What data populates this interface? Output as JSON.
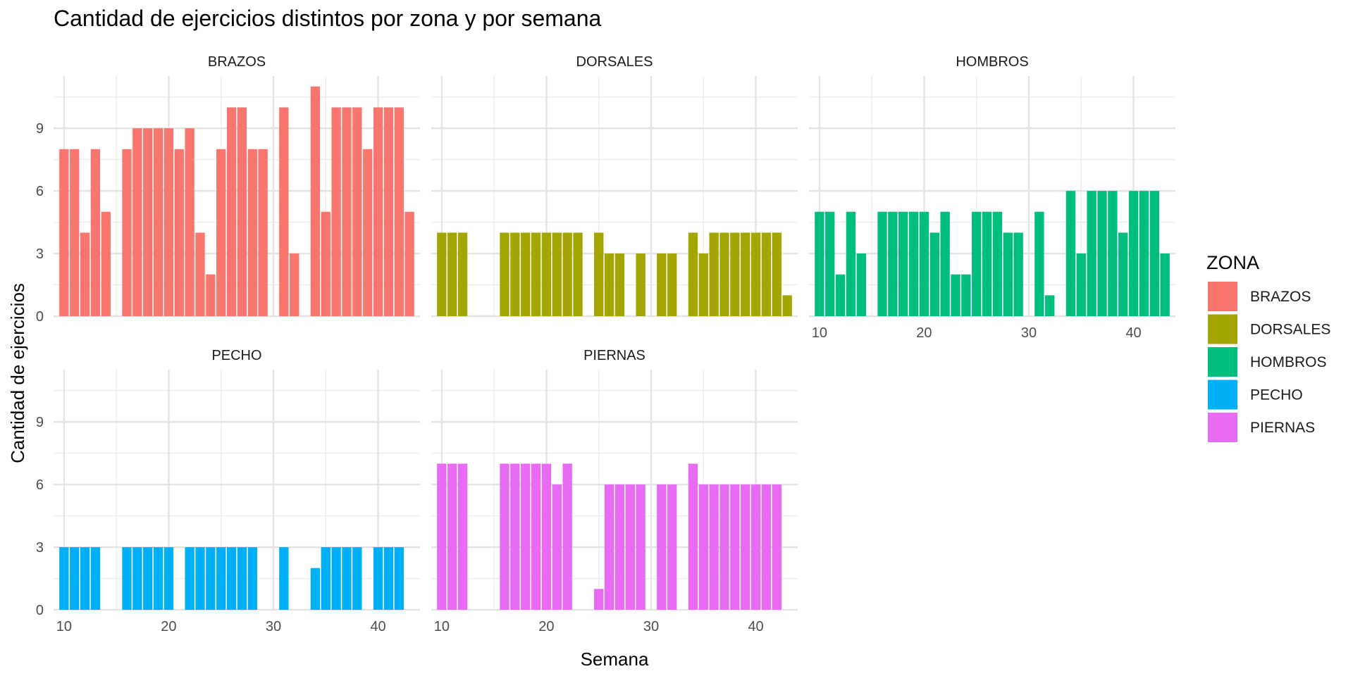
{
  "chart_data": {
    "type": "bar",
    "title": "Cantidad de ejercicios distintos por zona y por semana",
    "xlabel": "Semana",
    "ylabel": "Cantidad de ejercicios",
    "x_ticks": [
      10,
      20,
      30,
      40
    ],
    "y_ticks": [
      0,
      3,
      6,
      9
    ],
    "xlim": [
      9,
      44
    ],
    "ylim": [
      0,
      11.5
    ],
    "grid": true,
    "legend": {
      "title": "ZONA",
      "position": "right",
      "entries": [
        "BRAZOS",
        "DORSALES",
        "HOMBROS",
        "PECHO",
        "PIERNAS"
      ]
    },
    "colors": {
      "BRAZOS": "#F8766D",
      "DORSALES": "#A3A500",
      "HOMBROS": "#00BF7D",
      "PECHO": "#00B0F6",
      "PIERNAS": "#E76BF3"
    },
    "panels": [
      {
        "name": "BRAZOS",
        "x": [
          10,
          11,
          12,
          13,
          14,
          16,
          17,
          18,
          19,
          20,
          21,
          22,
          23,
          24,
          25,
          26,
          27,
          28,
          29,
          31,
          32,
          34,
          35,
          36,
          37,
          38,
          39,
          40,
          41,
          42,
          43
        ],
        "values": [
          8,
          8,
          4,
          8,
          5,
          8,
          9,
          9,
          9,
          9,
          8,
          9,
          4,
          2,
          8,
          10,
          10,
          8,
          8,
          10,
          3,
          11,
          5,
          10,
          10,
          10,
          8,
          10,
          10,
          10,
          5
        ]
      },
      {
        "name": "DORSALES",
        "x": [
          10,
          11,
          12,
          16,
          17,
          18,
          19,
          20,
          21,
          22,
          23,
          25,
          26,
          27,
          29,
          31,
          32,
          34,
          35,
          36,
          37,
          38,
          39,
          40,
          41,
          42,
          43
        ],
        "values": [
          4,
          4,
          4,
          4,
          4,
          4,
          4,
          4,
          4,
          4,
          4,
          4,
          3,
          3,
          3,
          3,
          3,
          4,
          3,
          4,
          4,
          4,
          4,
          4,
          4,
          4,
          1
        ]
      },
      {
        "name": "HOMBROS",
        "x": [
          10,
          11,
          12,
          13,
          14,
          16,
          17,
          18,
          19,
          20,
          21,
          22,
          23,
          24,
          25,
          26,
          27,
          28,
          29,
          31,
          32,
          34,
          35,
          36,
          37,
          38,
          39,
          40,
          41,
          42,
          43
        ],
        "values": [
          5,
          5,
          2,
          5,
          3,
          5,
          5,
          5,
          5,
          5,
          4,
          5,
          2,
          2,
          5,
          5,
          5,
          4,
          4,
          5,
          1,
          6,
          3,
          6,
          6,
          6,
          4,
          6,
          6,
          6,
          3
        ]
      },
      {
        "name": "PECHO",
        "x": [
          10,
          11,
          12,
          13,
          16,
          17,
          18,
          19,
          20,
          22,
          23,
          24,
          25,
          26,
          27,
          28,
          31,
          34,
          35,
          36,
          37,
          38,
          40,
          41,
          42
        ],
        "values": [
          3,
          3,
          3,
          3,
          3,
          3,
          3,
          3,
          3,
          3,
          3,
          3,
          3,
          3,
          3,
          3,
          3,
          2,
          3,
          3,
          3,
          3,
          3,
          3,
          3
        ]
      },
      {
        "name": "PIERNAS",
        "x": [
          10,
          11,
          12,
          16,
          17,
          18,
          19,
          20,
          21,
          22,
          25,
          26,
          27,
          28,
          29,
          31,
          32,
          34,
          35,
          36,
          37,
          38,
          39,
          40,
          41,
          42
        ],
        "values": [
          7,
          7,
          7,
          7,
          7,
          7,
          7,
          7,
          6,
          7,
          1,
          6,
          6,
          6,
          6,
          6,
          6,
          7,
          6,
          6,
          6,
          6,
          6,
          6,
          6,
          6
        ]
      }
    ]
  }
}
